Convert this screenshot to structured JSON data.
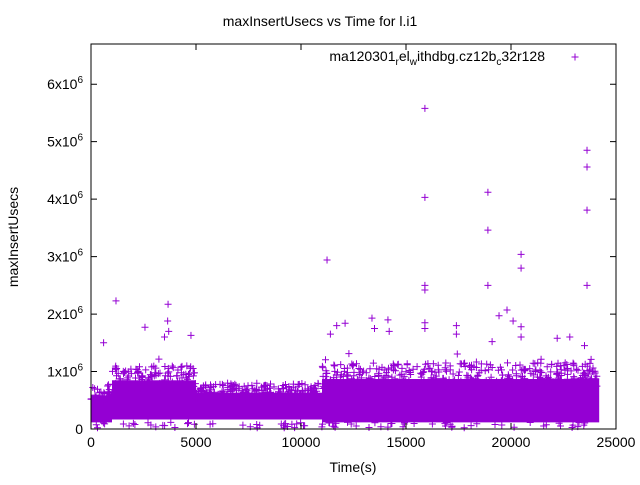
{
  "chart_data": {
    "type": "scatter",
    "title": "maxInsertUsecs vs Time for l.i1",
    "xlabel": "Time(s)",
    "ylabel": "maxInsertUsecs",
    "xlim": [
      0,
      25000
    ],
    "ylim": [
      0,
      6700000
    ],
    "xticks": [
      0,
      5000,
      10000,
      15000,
      20000,
      25000
    ],
    "xtick_labels": [
      "0",
      "5000",
      "10000",
      "15000",
      "20000",
      "25000"
    ],
    "yticks": [
      0,
      1000000,
      2000000,
      3000000,
      4000000,
      5000000,
      6000000
    ],
    "ytick_labels": [
      {
        "base": "0",
        "exp": ""
      },
      {
        "base": "1x10",
        "exp": "6"
      },
      {
        "base": "2x10",
        "exp": "6"
      },
      {
        "base": "3x10",
        "exp": "6"
      },
      {
        "base": "4x10",
        "exp": "6"
      },
      {
        "base": "5x10",
        "exp": "6"
      },
      {
        "base": "6x10",
        "exp": "6"
      }
    ],
    "grid": false,
    "legend_position": "top-right",
    "series": [
      {
        "name_parts": [
          {
            "t": "ma120301",
            "sub": false
          },
          {
            "t": "r",
            "sub": true
          },
          {
            "t": "el",
            "sub": false
          },
          {
            "t": "w",
            "sub": true
          },
          {
            "t": "ithdbg.cz12b",
            "sub": false
          },
          {
            "t": "c",
            "sub": true
          },
          {
            "t": "32r128",
            "sub": false
          }
        ],
        "color": "#9400d3",
        "marker": "plus",
        "dense_band": [
          {
            "x": [
              0,
              1000
            ],
            "y_low": 150000,
            "y_high": 750000
          },
          {
            "x": [
              1000,
              5000
            ],
            "y_low": 200000,
            "y_high": 1100000
          },
          {
            "x": [
              5000,
              11000
            ],
            "y_low": 200000,
            "y_high": 800000
          },
          {
            "x": [
              11000,
              24200
            ],
            "y_low": 150000,
            "y_high": 1150000
          }
        ],
        "outliers": [
          [
            1190,
            2230000
          ],
          [
            3670,
            2170000
          ],
          [
            2570,
            1770000
          ],
          [
            4760,
            1630000
          ],
          [
            600,
            1500000
          ],
          [
            3650,
            1880000
          ],
          [
            3700,
            1700000
          ],
          [
            3500,
            1600000
          ],
          [
            11240,
            2940000
          ],
          [
            11400,
            1650000
          ],
          [
            11700,
            1800000
          ],
          [
            12100,
            1840000
          ],
          [
            13380,
            1930000
          ],
          [
            14140,
            1900000
          ],
          [
            13500,
            1750000
          ],
          [
            14200,
            1700000
          ],
          [
            15900,
            5580000
          ],
          [
            15900,
            4030000
          ],
          [
            15900,
            2500000
          ],
          [
            15900,
            2420000
          ],
          [
            15900,
            1850000
          ],
          [
            15900,
            1750000
          ],
          [
            17400,
            1800000
          ],
          [
            17400,
            1650000
          ],
          [
            18900,
            4120000
          ],
          [
            18900,
            3460000
          ],
          [
            18900,
            2500000
          ],
          [
            19100,
            1520000
          ],
          [
            19430,
            1970000
          ],
          [
            19810,
            2070000
          ],
          [
            20100,
            1880000
          ],
          [
            20480,
            1780000
          ],
          [
            20480,
            3040000
          ],
          [
            20480,
            2800000
          ],
          [
            20480,
            1600000
          ],
          [
            22200,
            1580000
          ],
          [
            22800,
            1600000
          ],
          [
            23620,
            4850000
          ],
          [
            23620,
            4560000
          ],
          [
            23620,
            3810000
          ],
          [
            23620,
            2500000
          ],
          [
            23500,
            1450000
          ]
        ]
      }
    ]
  }
}
